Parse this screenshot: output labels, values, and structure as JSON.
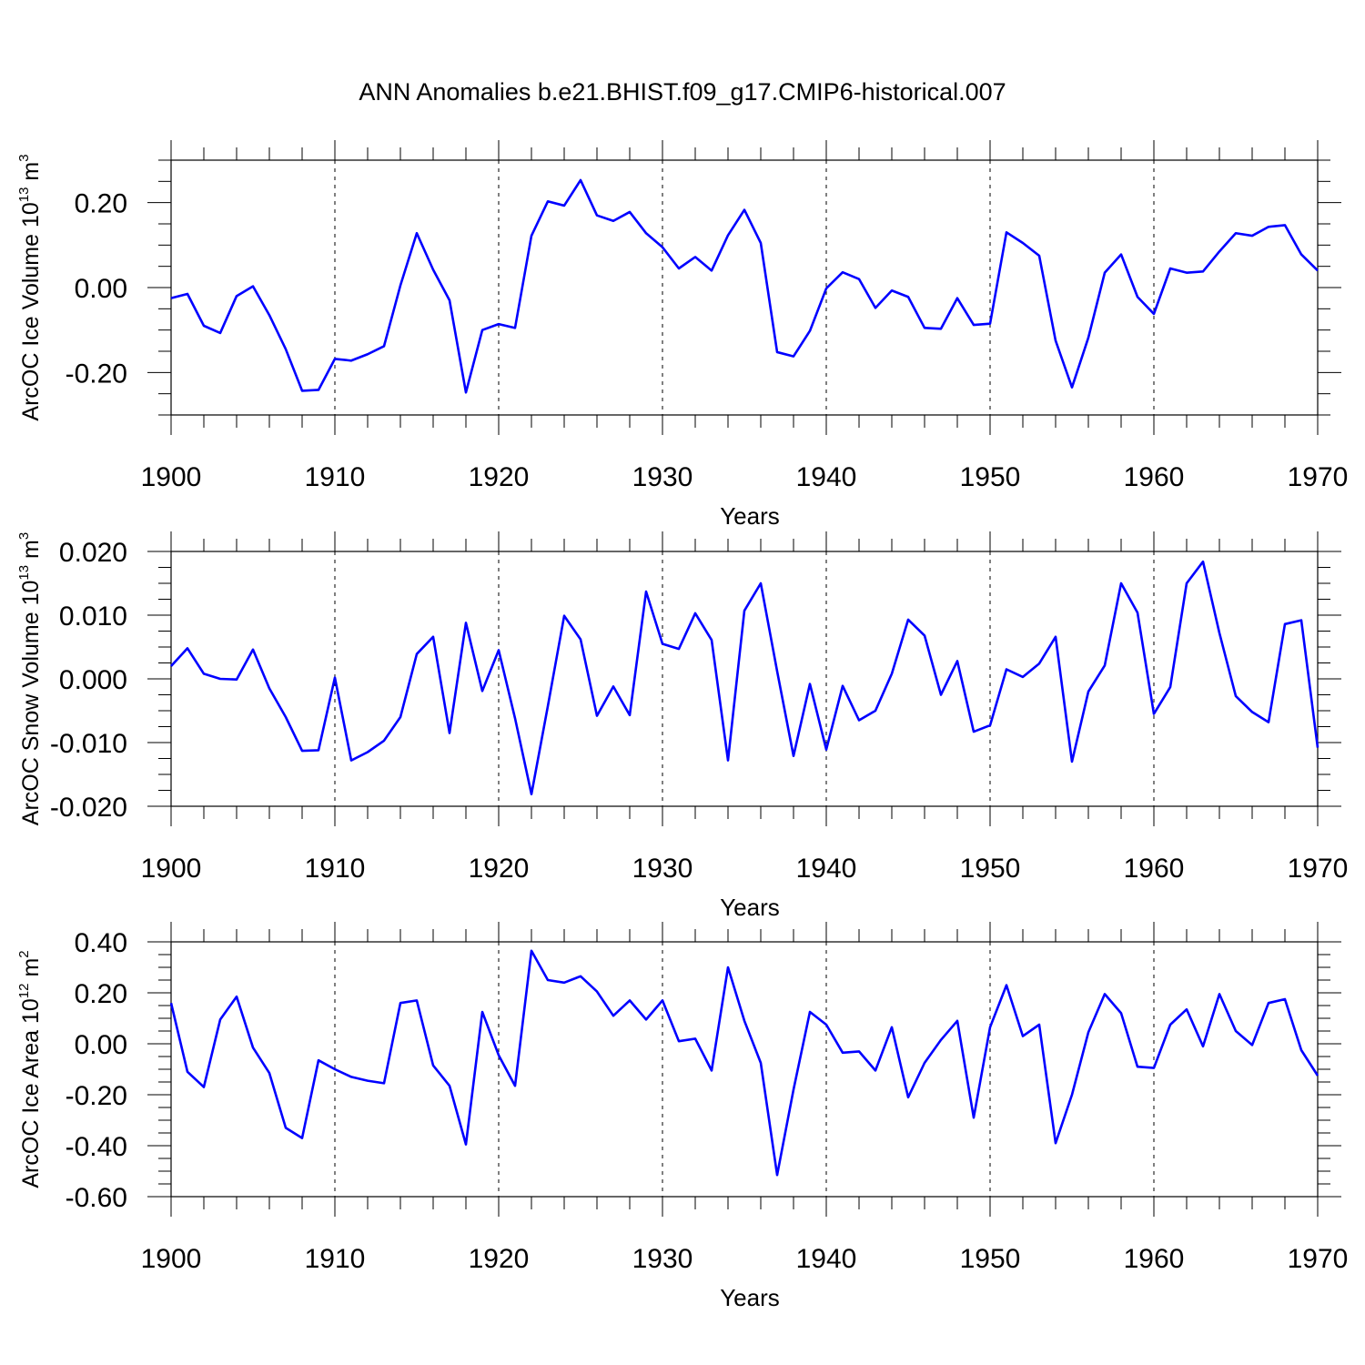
{
  "title": "ANN Anomalies b.e21.BHIST.f09_g17.CMIP6-historical.007",
  "chart_data": [
    {
      "type": "line",
      "title": "ANN Anomalies b.e21.BHIST.f09_g17.CMIP6-historical.007",
      "xlabel": "Years",
      "ylabel": "ArcOC Ice Volume 10",
      "ylabel_exp": "13",
      "ylabel_unit": " m",
      "ylabel_unit_exp": "3",
      "xlim": [
        1900,
        1970
      ],
      "ylim": [
        -0.3,
        0.3
      ],
      "x_ticks": [
        1900,
        1910,
        1920,
        1930,
        1940,
        1950,
        1960,
        1970
      ],
      "x_tick_labels": [
        "1900",
        "1910",
        "1920",
        "1930",
        "1940",
        "1950",
        "1960",
        "1970"
      ],
      "y_ticks": [
        -0.2,
        0.0,
        0.2
      ],
      "y_tick_labels": [
        "-0.20",
        "0.00",
        "0.20"
      ],
      "y_minor_step": 0.05,
      "series": [
        {
          "name": "ArcOC Ice Volume",
          "color": "#0000ff",
          "x_start": 1900,
          "values": [
            -0.025,
            -0.015,
            -0.09,
            -0.107,
            -0.02,
            0.003,
            -0.065,
            -0.145,
            -0.243,
            -0.241,
            -0.168,
            -0.172,
            -0.157,
            -0.138,
            0.005,
            0.128,
            0.042,
            -0.03,
            -0.247,
            -0.1,
            -0.086,
            -0.095,
            0.122,
            0.203,
            0.193,
            0.253,
            0.17,
            0.157,
            0.178,
            0.128,
            0.095,
            0.045,
            0.072,
            0.04,
            0.123,
            0.183,
            0.105,
            -0.152,
            -0.162,
            -0.102,
            -0.002,
            0.036,
            0.02,
            -0.048,
            -0.007,
            -0.022,
            -0.095,
            -0.097,
            -0.025,
            -0.088,
            -0.085,
            0.13,
            0.105,
            0.075,
            -0.125,
            -0.235,
            -0.118,
            0.035,
            0.078,
            -0.022,
            -0.062,
            0.045,
            0.035,
            0.038,
            0.085,
            0.128,
            0.122,
            0.143,
            0.147,
            0.078,
            0.04
          ]
        }
      ]
    },
    {
      "type": "line",
      "xlabel": "Years",
      "ylabel": "ArcOC Snow Volume 10",
      "ylabel_exp": "13",
      "ylabel_unit": " m",
      "ylabel_unit_exp": "3",
      "xlim": [
        1900,
        1970
      ],
      "ylim": [
        -0.02,
        0.02
      ],
      "x_ticks": [
        1900,
        1910,
        1920,
        1930,
        1940,
        1950,
        1960,
        1970
      ],
      "x_tick_labels": [
        "1900",
        "1910",
        "1920",
        "1930",
        "1940",
        "1950",
        "1960",
        "1970"
      ],
      "y_ticks": [
        -0.02,
        -0.01,
        0.0,
        0.01,
        0.02
      ],
      "y_tick_labels": [
        "-0.020",
        "-0.010",
        "0.000",
        "0.010",
        "0.020"
      ],
      "y_minor_step": 0.0025,
      "series": [
        {
          "name": "ArcOC Snow Volume",
          "color": "#0000ff",
          "x_start": 1900,
          "values": [
            0.002,
            0.0048,
            0.0008,
            0.0,
            -0.0001,
            0.0046,
            -0.0015,
            -0.006,
            -0.0113,
            -0.0112,
            0.0002,
            -0.0128,
            -0.0115,
            -0.0097,
            -0.006,
            0.0039,
            0.0066,
            -0.0085,
            0.0088,
            -0.0019,
            0.0045,
            -0.0062,
            -0.0181,
            -0.0043,
            0.0099,
            0.0062,
            -0.0058,
            -0.0012,
            -0.0057,
            0.0137,
            0.0055,
            0.0047,
            0.0103,
            0.0061,
            -0.0128,
            0.0107,
            0.015,
            0.0012,
            -0.0121,
            -0.0008,
            -0.0111,
            -0.0011,
            -0.0065,
            -0.005,
            0.0008,
            0.0093,
            0.0068,
            -0.0025,
            0.0028,
            -0.0083,
            -0.0073,
            0.0015,
            0.0003,
            0.0024,
            0.0066,
            -0.013,
            -0.002,
            0.0021,
            0.015,
            0.0104,
            -0.0055,
            -0.0013,
            0.015,
            0.0184,
            0.0072,
            -0.0027,
            -0.0052,
            -0.0068,
            0.0086,
            0.0092,
            -0.0108
          ]
        }
      ]
    },
    {
      "type": "line",
      "xlabel": "Years",
      "ylabel": "ArcOC Ice Area 10",
      "ylabel_exp": "12",
      "ylabel_unit": " m",
      "ylabel_unit_exp": "2",
      "xlim": [
        1900,
        1970
      ],
      "ylim": [
        -0.6,
        0.4
      ],
      "x_ticks": [
        1900,
        1910,
        1920,
        1930,
        1940,
        1950,
        1960,
        1970
      ],
      "x_tick_labels": [
        "1900",
        "1910",
        "1920",
        "1930",
        "1940",
        "1950",
        "1960",
        "1970"
      ],
      "y_ticks": [
        -0.6,
        -0.4,
        -0.2,
        0.0,
        0.2,
        0.4
      ],
      "y_tick_labels": [
        "-0.60",
        "-0.40",
        "-0.20",
        "0.00",
        "0.20",
        "0.40"
      ],
      "y_minor_step": 0.05,
      "series": [
        {
          "name": "ArcOC Ice Area",
          "color": "#0000ff",
          "x_start": 1900,
          "values": [
            0.16,
            -0.11,
            -0.17,
            0.095,
            0.185,
            -0.015,
            -0.115,
            -0.33,
            -0.37,
            -0.065,
            -0.1,
            -0.13,
            -0.145,
            -0.155,
            0.16,
            0.17,
            -0.085,
            -0.165,
            -0.395,
            0.125,
            -0.045,
            -0.165,
            0.365,
            0.25,
            0.24,
            0.265,
            0.205,
            0.11,
            0.17,
            0.095,
            0.17,
            0.01,
            0.02,
            -0.105,
            0.3,
            0.09,
            -0.075,
            -0.515,
            -0.18,
            0.125,
            0.075,
            -0.035,
            -0.03,
            -0.105,
            0.065,
            -0.21,
            -0.075,
            0.015,
            0.09,
            -0.29,
            0.065,
            0.23,
            0.03,
            0.075,
            -0.39,
            -0.2,
            0.045,
            0.195,
            0.12,
            -0.09,
            -0.095,
            0.075,
            0.135,
            -0.01,
            0.195,
            0.05,
            -0.005,
            0.16,
            0.175,
            -0.025,
            -0.125
          ]
        }
      ]
    }
  ]
}
